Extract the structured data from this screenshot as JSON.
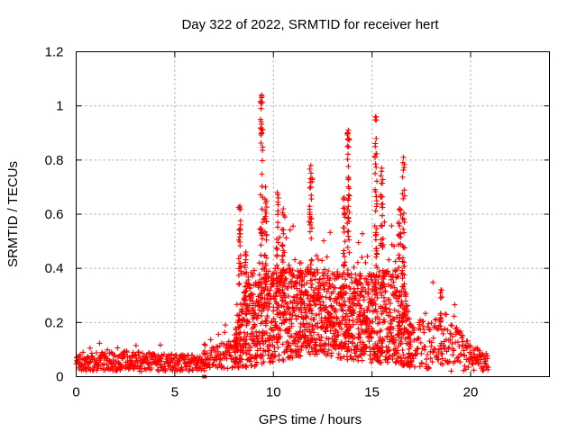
{
  "chart_data": {
    "type": "scatter",
    "title": "Day 322 of 2022, SRMTID for receiver hert",
    "xlabel": "GPS time / hours",
    "ylabel": "SRMTID / TECUs",
    "xlim": [
      0,
      24
    ],
    "ylim": [
      0,
      1.2
    ],
    "x_ticks": [
      0,
      5,
      10,
      15,
      20
    ],
    "y_ticks": [
      0,
      0.2,
      0.4,
      0.6,
      0.8,
      1,
      1.2
    ],
    "x_tick_labels": [
      "0",
      "5",
      "10",
      "15",
      "20"
    ],
    "y_tick_labels": [
      "0",
      "0.2",
      "0.4",
      "0.6",
      "0.8",
      "1",
      "1.2"
    ],
    "grid": true,
    "marker": "+",
    "color": "#ff0000",
    "data_range_hours": [
      0,
      20.9
    ],
    "envelope": [
      {
        "x": 0.0,
        "base": 0.05,
        "spread": 0.03
      },
      {
        "x": 2.0,
        "base": 0.06,
        "spread": 0.04
      },
      {
        "x": 5.0,
        "base": 0.05,
        "spread": 0.03
      },
      {
        "x": 6.5,
        "base": 0.05,
        "spread": 0.03
      },
      {
        "x": 7.0,
        "base": 0.07,
        "spread": 0.04
      },
      {
        "x": 8.0,
        "base": 0.09,
        "spread": 0.06
      },
      {
        "x": 8.5,
        "base": 0.18,
        "spread": 0.15
      },
      {
        "x": 9.5,
        "base": 0.22,
        "spread": 0.18
      },
      {
        "x": 12.0,
        "base": 0.24,
        "spread": 0.16
      },
      {
        "x": 14.0,
        "base": 0.22,
        "spread": 0.16
      },
      {
        "x": 16.5,
        "base": 0.22,
        "spread": 0.18
      },
      {
        "x": 17.0,
        "base": 0.12,
        "spread": 0.09
      },
      {
        "x": 19.0,
        "base": 0.12,
        "spread": 0.1
      },
      {
        "x": 20.0,
        "base": 0.07,
        "spread": 0.05
      },
      {
        "x": 20.9,
        "base": 0.05,
        "spread": 0.03
      }
    ],
    "spikes": [
      {
        "x": 8.3,
        "peak": 0.63
      },
      {
        "x": 8.6,
        "peak": 0.46
      },
      {
        "x": 9.4,
        "peak": 1.04
      },
      {
        "x": 9.6,
        "peak": 0.7
      },
      {
        "x": 10.2,
        "peak": 0.68
      },
      {
        "x": 10.5,
        "peak": 0.62
      },
      {
        "x": 11.4,
        "peak": 0.42
      },
      {
        "x": 11.9,
        "peak": 0.78
      },
      {
        "x": 13.6,
        "peak": 0.66
      },
      {
        "x": 13.8,
        "peak": 0.91
      },
      {
        "x": 14.4,
        "peak": 0.38
      },
      {
        "x": 15.2,
        "peak": 0.96
      },
      {
        "x": 15.5,
        "peak": 0.77
      },
      {
        "x": 16.4,
        "peak": 0.62
      },
      {
        "x": 16.6,
        "peak": 0.81
      },
      {
        "x": 18.5,
        "peak": 0.32
      },
      {
        "x": 6.5,
        "peak": 0.12
      }
    ],
    "outliers": [
      {
        "x": 6.5,
        "y": 0.0
      }
    ]
  }
}
